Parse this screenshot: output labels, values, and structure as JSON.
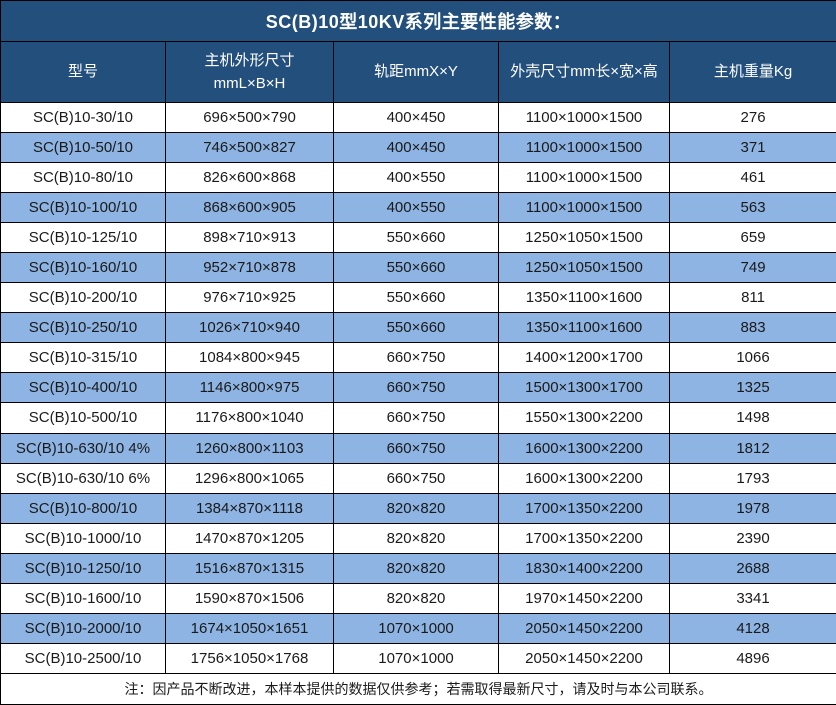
{
  "title": "SC(B)10型10KV系列主要性能参数：",
  "table": {
    "header": {
      "model": "型号",
      "dims_line1": "主机外形尺寸",
      "dims_line2": "mmL×B×H",
      "rail": "轨距mmX×Y",
      "shell": "外壳尺寸mm长×宽×高",
      "weight": "主机重量Kg"
    },
    "rows": [
      [
        "SC(B)10-30/10",
        "696×500×790",
        "400×450",
        "1100×1000×1500",
        "276"
      ],
      [
        "SC(B)10-50/10",
        "746×500×827",
        "400×450",
        "1100×1000×1500",
        "371"
      ],
      [
        "SC(B)10-80/10",
        "826×600×868",
        "400×550",
        "1100×1000×1500",
        "461"
      ],
      [
        "SC(B)10-100/10",
        "868×600×905",
        "400×550",
        "1100×1000×1500",
        "563"
      ],
      [
        "SC(B)10-125/10",
        "898×710×913",
        "550×660",
        "1250×1050×1500",
        "659"
      ],
      [
        "SC(B)10-160/10",
        "952×710×878",
        "550×660",
        "1250×1050×1500",
        "749"
      ],
      [
        "SC(B)10-200/10",
        "976×710×925",
        "550×660",
        "1350×1100×1600",
        "811"
      ],
      [
        "SC(B)10-250/10",
        "1026×710×940",
        "550×660",
        "1350×1100×1600",
        "883"
      ],
      [
        "SC(B)10-315/10",
        "1084×800×945",
        "660×750",
        "1400×1200×1700",
        "1066"
      ],
      [
        "SC(B)10-400/10",
        "1146×800×975",
        "660×750",
        "1500×1300×1700",
        "1325"
      ],
      [
        "SC(B)10-500/10",
        "1176×800×1040",
        "660×750",
        "1550×1300×2200",
        "1498"
      ],
      [
        "SC(B)10-630/10 4%",
        "1260×800×1103",
        "660×750",
        "1600×1300×2200",
        "1812"
      ],
      [
        "SC(B)10-630/10 6%",
        "1296×800×1065",
        "660×750",
        "1600×1300×2200",
        "1793"
      ],
      [
        "SC(B)10-800/10",
        "1384×870×1118",
        "820×820",
        "1700×1350×2200",
        "1978"
      ],
      [
        "SC(B)10-1000/10",
        "1470×870×1205",
        "820×820",
        "1700×1350×2200",
        "2390"
      ],
      [
        "SC(B)10-1250/10",
        "1516×870×1315",
        "820×820",
        "1830×1400×2200",
        "2688"
      ],
      [
        "SC(B)10-1600/10",
        "1590×870×1506",
        "820×820",
        "1970×1450×2200",
        "3341"
      ],
      [
        "SC(B)10-2000/10",
        "1674×1050×1651",
        "1070×1000",
        "2050×1450×2200",
        "4128"
      ],
      [
        "SC(B)10-2500/10",
        "1756×1050×1768",
        "1070×1000",
        "2050×1450×2200",
        "4896"
      ]
    ]
  },
  "note": "注：因产品不断改进，本样本提供的数据仅供参考；若需取得最新尺寸，请及时与本公司联系。",
  "colors": {
    "header_bg": "#234F7D",
    "header_text": "#FFFFFF",
    "alt_row_bg": "#8DB4E2",
    "body_text": "#1A1A1A",
    "border": "#000000"
  }
}
